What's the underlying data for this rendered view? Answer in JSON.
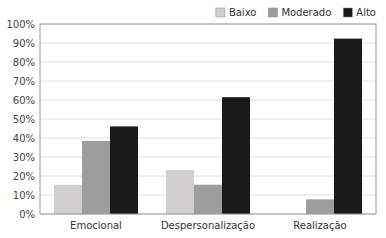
{
  "chart_data": {
    "type": "bar",
    "categories": [
      "Emocional",
      "Despersonalização",
      "Realização"
    ],
    "series": [
      {
        "name": "Baixo",
        "color": "#d0cece",
        "values": [
          15.4,
          23.1,
          0.0
        ]
      },
      {
        "name": "Moderado",
        "color": "#9d9d9d",
        "values": [
          38.5,
          15.4,
          7.7
        ]
      },
      {
        "name": "Alto",
        "color": "#1a1a1a",
        "values": [
          46.1,
          61.5,
          92.3
        ]
      }
    ],
    "ylim": [
      0,
      100
    ],
    "yticks": [
      {
        "value": 0,
        "label": "0%"
      },
      {
        "value": 10,
        "label": "10%"
      },
      {
        "value": 20,
        "label": "20%"
      },
      {
        "value": 30,
        "label": "30%"
      },
      {
        "value": 40,
        "label": "40%"
      },
      {
        "value": 50,
        "label": "50%"
      },
      {
        "value": 60,
        "label": "60%"
      },
      {
        "value": 70,
        "label": "70%"
      },
      {
        "value": 80,
        "label": "80%"
      },
      {
        "value": 90,
        "label": "90%"
      },
      {
        "value": 100,
        "label": "100%"
      }
    ],
    "grid": true,
    "legend": "upper right"
  }
}
